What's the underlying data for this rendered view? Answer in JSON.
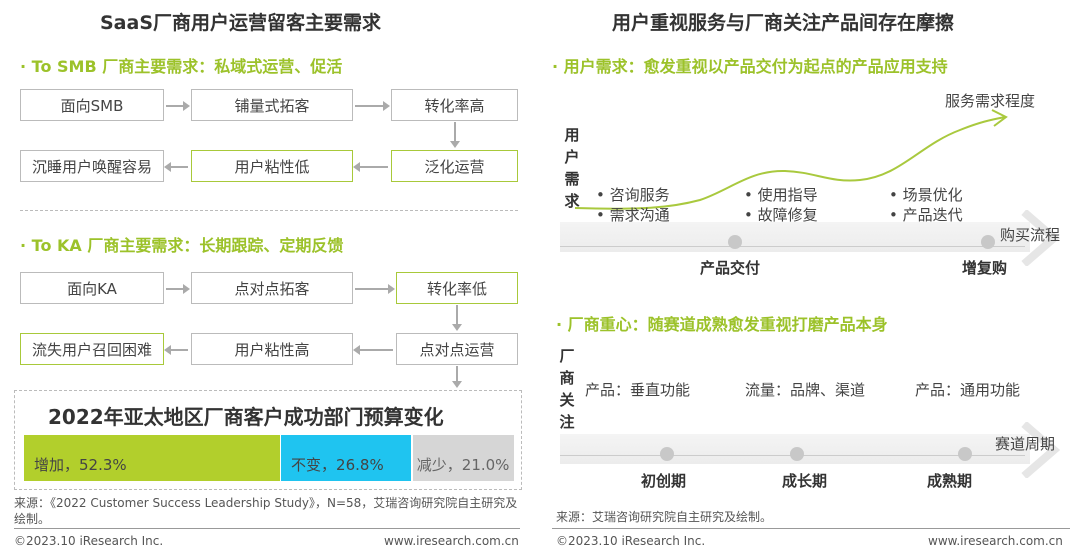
{
  "left": {
    "title": "SaaS厂商用户运营留客主要需求",
    "smb": {
      "header": "· To SMB 厂商主要需求：私域式运营、促活",
      "row1": [
        "面向SMB",
        "铺量式拓客",
        "转化率高"
      ],
      "row2": [
        "沉睡用户唤醒容易",
        "用户粘性低",
        "泛化运营"
      ]
    },
    "ka": {
      "header": "· To KA 厂商主要需求：长期跟踪、定期反馈",
      "row1": [
        "面向KA",
        "点对点拓客",
        "转化率低"
      ],
      "row2": [
        "流失用户召回困难",
        "用户粘性高",
        "点对点运营"
      ]
    },
    "chart_data": {
      "type": "bar",
      "title": "2022年亚太地区厂商客户成功部门预算变化",
      "categories": [
        "增加",
        "不变",
        "减少"
      ],
      "values": [
        52.3,
        26.8,
        21.0
      ],
      "labels": [
        "增加，52.3%",
        "不变，26.8%",
        "减少，21.0%"
      ],
      "colors": [
        "#b2cf2c",
        "#1fc4f0",
        "#d6d6d6"
      ]
    },
    "source": "来源：《2022 Customer Success Leadership Study》，N=58，艾瑞咨询研究院自主研究及绘制。",
    "copyright": "©2023.10 iResearch Inc.",
    "url": "www.iresearch.com.cn"
  },
  "right": {
    "title": "用户重视服务与厂商关注产品间存在摩擦",
    "user": {
      "header": "· 用户需求：愈发重视以产品交付为起点的产品应用支持",
      "vlabel": "用户需求",
      "curve_label": "服务需求程度",
      "axis_label": "购买流程",
      "groups": [
        [
          "• 咨询服务",
          "• 需求沟通"
        ],
        [
          "• 使用指导",
          "• 故障修复"
        ],
        [
          "• 场景优化",
          "• 产品迭代"
        ]
      ],
      "milestones": [
        "产品交付",
        "增复购"
      ]
    },
    "vendor": {
      "header": "· 厂商重心：随赛道成熟愈发重视打磨产品本身",
      "vlabel": "厂商关注",
      "axis_label": "赛道周期",
      "items": [
        "产品：垂直功能",
        "流量：品牌、渠道",
        "产品：通用功能"
      ],
      "milestones": [
        "初创期",
        "成长期",
        "成熟期"
      ]
    },
    "source": "来源：艾瑞咨询研究院自主研究及绘制。",
    "copyright": "©2023.10 iResearch Inc.",
    "url": "www.iresearch.com.cn"
  }
}
